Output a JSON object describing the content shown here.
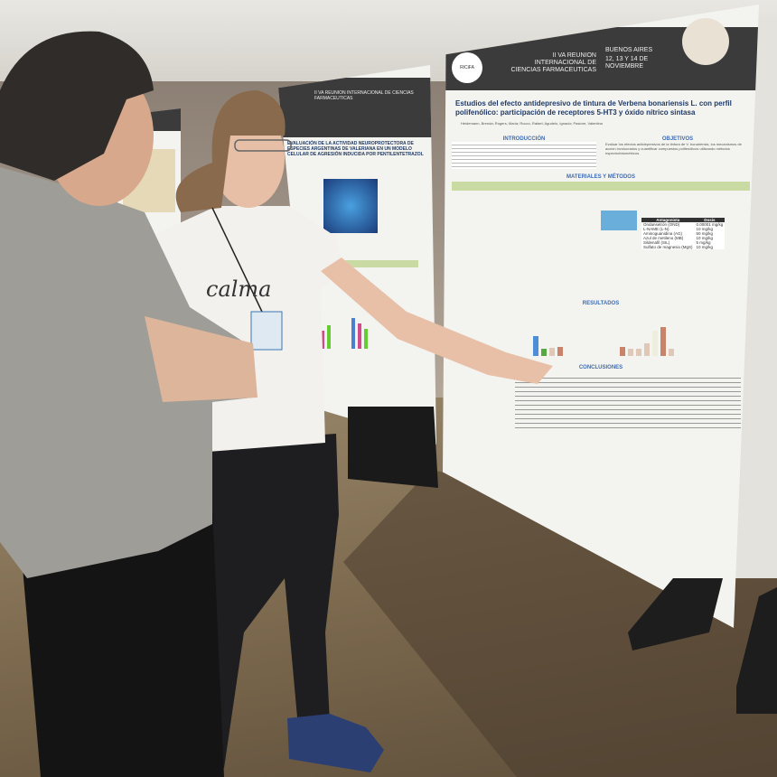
{
  "poster_right": {
    "event": "II VA REUNION INTERNACIONAL DE CIENCIAS FARMACEUTICAS",
    "location": "BUENOS AIRES",
    "dates": "12, 13 Y 14 DE NOVIEMBRE",
    "title": "Estudios del efecto antidepresivo de tintura de Verbena bonariensis L. con perfil polifenólico: participación de receptores 5-HT3 y óxido nítrico sintasa",
    "authors": "Heidemann, Brenda; Rogers, María; Rocco, Rafael; Agudelo, Ignacio; Pastore, Valentina",
    "sections": {
      "intro": "INTRODUCCIÓN",
      "objectives": "OBJETIVOS",
      "methods": "MATERIALES Y MÉTODOS",
      "results": "RESULTADOS",
      "conclusions": "CONCLUSIONES"
    },
    "objectives_text": "Evaluar los efectos antidepresivos de la tintura de V. bonariensis, los mecanismos de acción involucrados y cuantificar compuestos polifenólicos utilizando métodos espectrofotométricos.",
    "table": {
      "headers": [
        "Antagonista",
        "Dosis"
      ],
      "rows": [
        [
          "Ondansetrón (OND)",
          "0.00001 mg/kg"
        ],
        [
          "L-NAME (L-N)",
          "10 mg/kg"
        ],
        [
          "Aminoguanidina (AG)",
          "50 mg/kg"
        ],
        [
          "Azul de metileno (MB)",
          "10 mg/kg"
        ],
        [
          "Sildenafil (SIL)",
          "5 mg/kg"
        ],
        [
          "Sulfato de magnesio (MgS)",
          "10 mg/kg"
        ]
      ]
    },
    "logo_text": "RICiFA"
  },
  "poster_mid": {
    "event": "II VA REUNION INTERNACIONAL DE CIENCIAS FARMACEUTICAS",
    "title": "EVALUACIÓN DE LA ACTIVIDAD NEUROPROTECTORA DE ESPECIES ARGENTINAS DE VALERIANA EN UN MODELO CELULAR DE AGRESIÓN INDUCIDA POR PENTILENTETRAZOL"
  },
  "shirt_text": "calma",
  "colors": {
    "poster_header": "#3b3b3b",
    "poster_title": "#1f3a66",
    "section_heading": "#3f6cb0",
    "man_shirt": "#9e9d97",
    "woman_shirt": "#f2f1ee",
    "shoes": "#2b3f73"
  }
}
